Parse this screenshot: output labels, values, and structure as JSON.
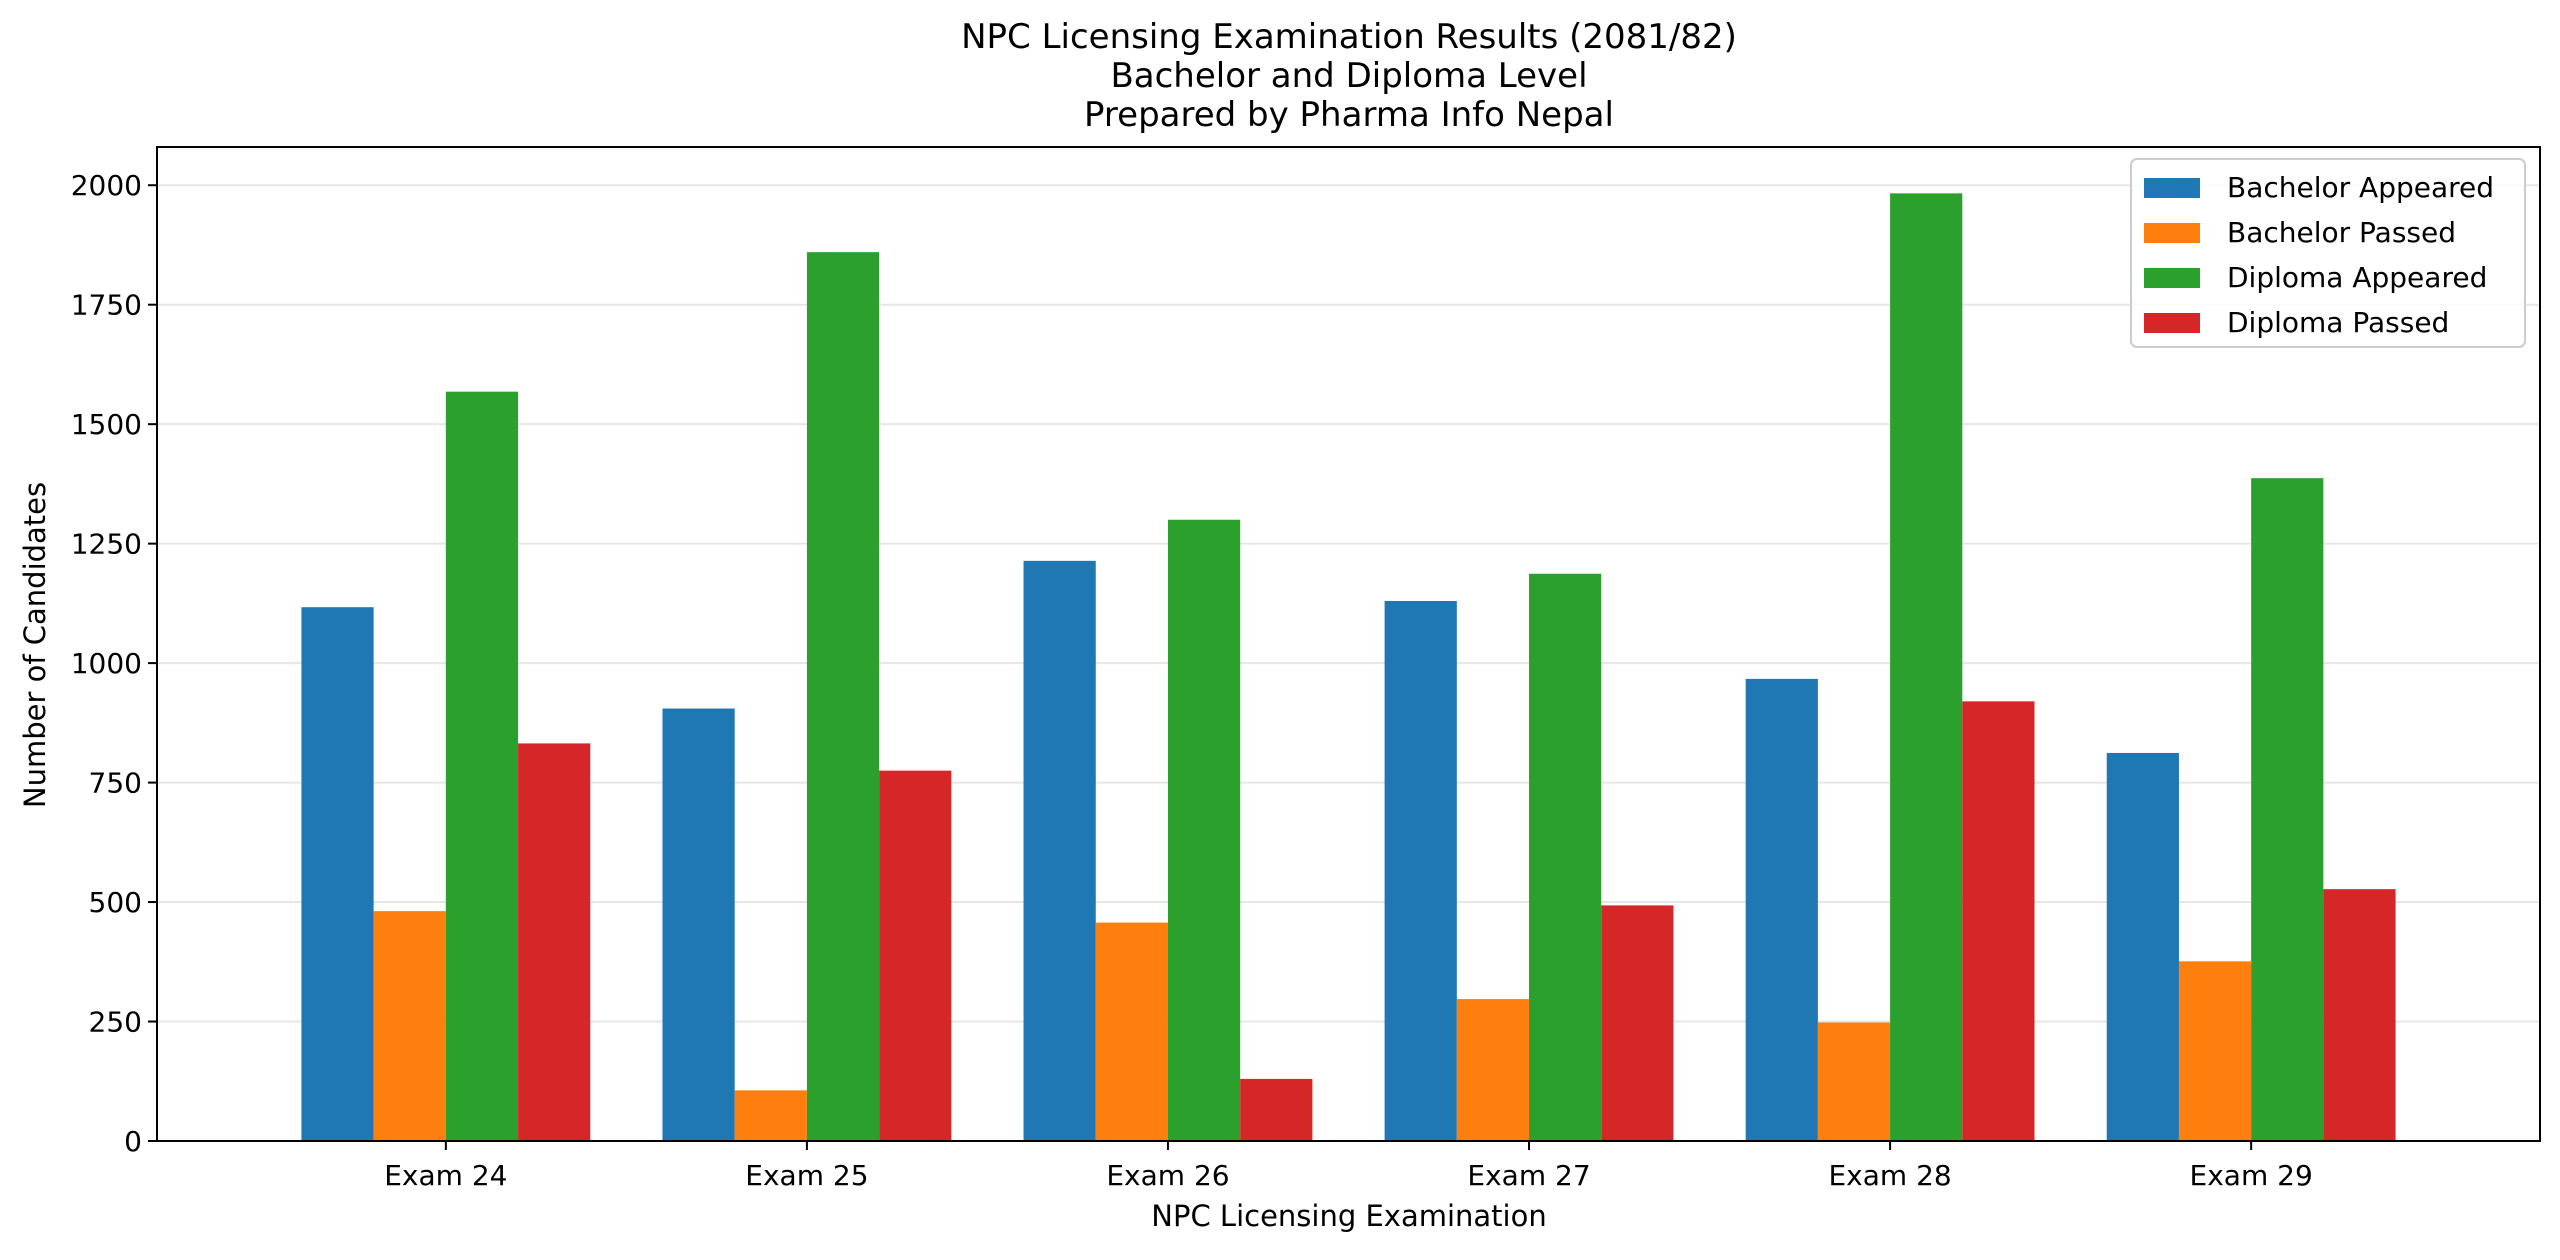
{
  "chart_data": {
    "type": "bar",
    "title_lines": [
      "NPC Licensing Examination Results (2081/82)",
      "Bachelor and Diploma Level",
      "Prepared by Pharma Info Nepal"
    ],
    "xlabel": "NPC Licensing Examination",
    "ylabel": "Number of Candidates",
    "categories": [
      "Exam 24",
      "Exam 25",
      "Exam 26",
      "Exam 27",
      "Exam 28",
      "Exam 29"
    ],
    "series": [
      {
        "name": "Bachelor Appeared",
        "color": "#1f77b4",
        "values": [
          1117,
          905,
          1214,
          1130,
          967,
          812
        ]
      },
      {
        "name": "Bachelor Passed",
        "color": "#ff7f0e",
        "values": [
          481,
          106,
          457,
          297,
          248,
          376
        ]
      },
      {
        "name": "Diploma Appeared",
        "color": "#2ca02c",
        "values": [
          1568,
          1860,
          1300,
          1187,
          1983,
          1387
        ]
      },
      {
        "name": "Diploma Passed",
        "color": "#d62728",
        "values": [
          832,
          775,
          130,
          493,
          920,
          527
        ]
      }
    ],
    "ylim": [
      0,
      2080
    ],
    "yticks": [
      0,
      250,
      500,
      750,
      1000,
      1250,
      1500,
      1750,
      2000
    ],
    "grid": "horizontal",
    "legend_position": "top-right"
  }
}
